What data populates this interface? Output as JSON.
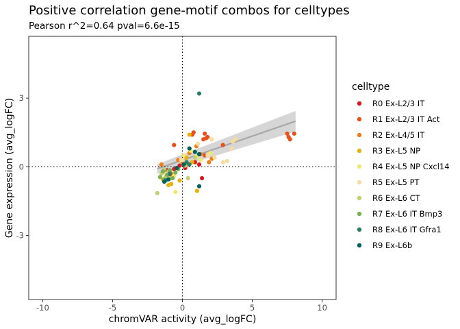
{
  "chart_data": {
    "type": "scatter",
    "title": "Positive correlation gene-motif combos for celltypes",
    "subtitle": "Pearson r^2=0.64 pval=6.6e-15",
    "xlabel": "chromVAR activity (avg_logFC)",
    "ylabel": "Gene expression (avg_logFC)",
    "xlim": [
      -11,
      11
    ],
    "ylim": [
      -5.8,
      5.7
    ],
    "x_ticks": [
      -10,
      -5,
      0,
      5,
      10
    ],
    "x_tick_labels": [
      "-10",
      "-5",
      "0",
      "5",
      "10"
    ],
    "y_ticks": [
      -3,
      0,
      3
    ],
    "y_tick_labels": [
      "-3",
      "0",
      "3"
    ],
    "grid": false,
    "reference_lines": {
      "x": 0,
      "y": 0,
      "style": "dotted"
    },
    "fit": {
      "method": "linear",
      "x_range": [
        -1.8,
        8.1
      ],
      "intercept": 0.29,
      "slope": 0.21,
      "ci_halfwidth_at_ends": [
        0.2,
        0.45
      ],
      "line_color": "#a8a8a8",
      "band_color": "#c8c8c8"
    },
    "legend": {
      "title": "celltype",
      "position": "right",
      "entries": [
        {
          "label": "R0 Ex-L2/3 IT",
          "color": "#d7191c"
        },
        {
          "label": "R1 Ex-L2/3 IT Act",
          "color": "#e8501a"
        },
        {
          "label": "R2 Ex-L4/5 IT",
          "color": "#f07d16"
        },
        {
          "label": "R3 Ex-L5 NP",
          "color": "#e6b20c"
        },
        {
          "label": "R4 Ex-L5 NP Cxcl14",
          "color": "#f1e86e"
        },
        {
          "label": "R5 Ex-L5 PT",
          "color": "#f7dba0"
        },
        {
          "label": "R6 Ex-L6 CT",
          "color": "#c0d073"
        },
        {
          "label": "R7 Ex-L6 IT Bmp3",
          "color": "#78b055"
        },
        {
          "label": "R8 Ex-L6 IT Gfra1",
          "color": "#2e7d63"
        },
        {
          "label": "R9 Ex-L6b",
          "color": "#005f5f"
        }
      ]
    },
    "series": [
      {
        "name": "R0 Ex-L2/3 IT",
        "points": [
          [
            -1.3,
            -0.2
          ],
          [
            -0.9,
            -0.35
          ],
          [
            -0.6,
            -0.1
          ],
          [
            -0.2,
            0.05
          ],
          [
            0.3,
            0.15
          ],
          [
            0.9,
            0.2
          ],
          [
            1.4,
            -0.5
          ],
          [
            1.2,
            0.1
          ],
          [
            0.2,
            -0.05
          ],
          [
            -1.1,
            -0.15
          ]
        ]
      },
      {
        "name": "R1 Ex-L2/3 IT Act",
        "points": [
          [
            -0.6,
            0.95
          ],
          [
            0.8,
            1.5
          ],
          [
            0.7,
            1.4
          ],
          [
            1.5,
            1.2
          ],
          [
            1.7,
            1.25
          ],
          [
            1.6,
            1.45
          ],
          [
            1.8,
            1.3
          ],
          [
            2.9,
            0.95
          ],
          [
            7.5,
            1.45
          ],
          [
            7.6,
            1.3
          ],
          [
            7.7,
            1.2
          ],
          [
            8.0,
            1.45
          ],
          [
            0.4,
            0.1
          ],
          [
            1.6,
            0.5
          ]
        ]
      },
      {
        "name": "R2 Ex-L4/5 IT",
        "points": [
          [
            -1.5,
            0.1
          ],
          [
            -0.3,
            0.3
          ],
          [
            0.5,
            0.6
          ],
          [
            1.0,
            0.9
          ],
          [
            1.3,
            0.55
          ],
          [
            1.9,
            0.2
          ],
          [
            2.1,
            0.35
          ],
          [
            0.0,
            0.15
          ],
          [
            -0.8,
            -0.3
          ]
        ]
      },
      {
        "name": "R3 Ex-L5 NP",
        "points": [
          [
            -1.0,
            -0.8
          ],
          [
            -0.8,
            -0.75
          ],
          [
            -0.2,
            -0.6
          ],
          [
            0.5,
            1.4
          ],
          [
            1.05,
            -1.05
          ],
          [
            0.3,
            0.4
          ],
          [
            -1.4,
            -0.55
          ],
          [
            0.7,
            0.2
          ]
        ]
      },
      {
        "name": "R4 Ex-L5 NP Cxcl14",
        "points": [
          [
            -0.5,
            -1.1
          ],
          [
            0.1,
            0.5
          ],
          [
            0.6,
            0.7
          ],
          [
            1.3,
            0.3
          ],
          [
            2.0,
            0.6
          ],
          [
            -0.6,
            -0.4
          ],
          [
            1.0,
            0.45
          ]
        ]
      },
      {
        "name": "R5 Ex-L5 PT",
        "points": [
          [
            -1.2,
            -0.3
          ],
          [
            0.0,
            0.3
          ],
          [
            0.5,
            0.8
          ],
          [
            1.1,
            1.0
          ],
          [
            1.8,
            0.5
          ],
          [
            2.3,
            0.4
          ],
          [
            2.9,
            0.2
          ],
          [
            3.2,
            0.25
          ],
          [
            3.5,
            0.8
          ],
          [
            3.8,
            1.2
          ],
          [
            3.6,
            1.1
          ],
          [
            2.1,
            1.2
          ],
          [
            0.9,
            0.65
          ],
          [
            -0.1,
            0.3
          ]
        ]
      },
      {
        "name": "R6 Ex-L6 CT",
        "points": [
          [
            -1.8,
            -1.15
          ],
          [
            -1.5,
            -0.3
          ],
          [
            -1.2,
            -0.45
          ],
          [
            -1.0,
            -0.2
          ],
          [
            0.4,
            -0.5
          ],
          [
            -0.9,
            -0.5
          ],
          [
            -1.3,
            -0.1
          ],
          [
            0.2,
            0.05
          ],
          [
            0.9,
            0.4
          ]
        ]
      },
      {
        "name": "R7 Ex-L6 IT Bmp3",
        "points": [
          [
            -1.6,
            -0.45
          ],
          [
            -1.4,
            -0.2
          ],
          [
            -1.1,
            -0.35
          ],
          [
            -0.7,
            -0.5
          ],
          [
            -0.5,
            -0.25
          ],
          [
            -0.3,
            -0.1
          ],
          [
            -1.3,
            -0.55
          ],
          [
            -0.9,
            -0.15
          ]
        ]
      },
      {
        "name": "R8 Ex-L6 IT Gfra1",
        "points": [
          [
            1.2,
            3.2
          ],
          [
            0.3,
            0.2
          ],
          [
            -0.9,
            -0.3
          ],
          [
            -1.2,
            -0.6
          ],
          [
            0.5,
            0.1
          ]
        ]
      },
      {
        "name": "R9 Ex-L6b",
        "points": [
          [
            -1.3,
            -0.65
          ],
          [
            -1.0,
            -0.55
          ],
          [
            -0.4,
            -0.05
          ],
          [
            0.5,
            0.8
          ],
          [
            0.9,
            0.65
          ],
          [
            1.2,
            0.55
          ],
          [
            1.2,
            -0.85
          ],
          [
            0.1,
            0.1
          ]
        ]
      }
    ]
  }
}
